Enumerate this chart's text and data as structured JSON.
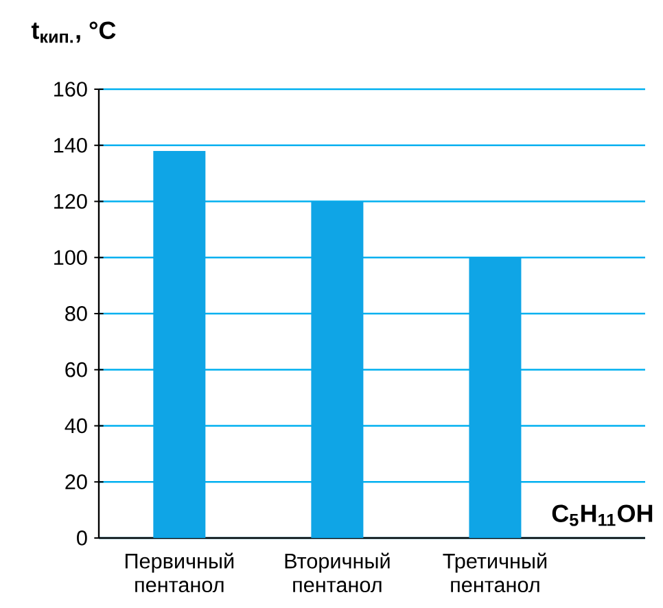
{
  "chart_data": {
    "type": "bar",
    "ylabel": "**t$_{кип.}$, °C**",
    "xlabel": "**C$_{5}$H$_{11}$OH**",
    "categories": [
      "Первичный пентанол",
      "Вторичный пентанол",
      "Третичный пентанол"
    ],
    "values": [
      138,
      120,
      100
    ],
    "color": "#0fa5e6",
    "ylim": [
      0,
      160
    ],
    "yticks": [
      0,
      20,
      40,
      60,
      80,
      100,
      120,
      140,
      160
    ],
    "grid": "y"
  }
}
